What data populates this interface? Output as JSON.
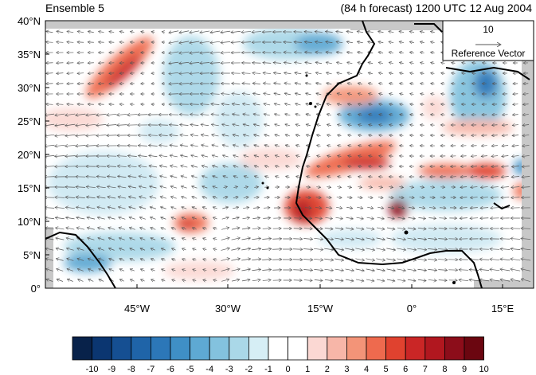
{
  "header": {
    "ensemble_label": "Ensemble 5",
    "forecast_label": "(84 h forecast) 1200 UTC 12 Aug 2004"
  },
  "map": {
    "lat_ticks": [
      "40°N",
      "35°N",
      "30°N",
      "25°N",
      "20°N",
      "15°N",
      "10°N",
      "5°N",
      "0°"
    ],
    "lon_ticks": [
      "45°W",
      "30°W",
      "15°W",
      "0°",
      "15°E"
    ],
    "reference_vector": {
      "magnitude": "10",
      "label": "Reference Vector"
    },
    "colors": {
      "land_outside": "#c8c8c8",
      "coastline": "#000000",
      "vector": "#555555"
    }
  },
  "colorbar": {
    "labels": [
      "-10",
      "-9",
      "-8",
      "-7",
      "-6",
      "-5",
      "-4",
      "-3",
      "-2",
      "-1",
      "0",
      "1",
      "2",
      "3",
      "4",
      "5",
      "6",
      "7",
      "8",
      "9",
      "10"
    ],
    "colors": [
      "#08224a",
      "#0b3671",
      "#154f92",
      "#1f64a8",
      "#2c77b8",
      "#3f8fc6",
      "#5ea9d3",
      "#83c2de",
      "#aad8e8",
      "#d6eef5",
      "#ffffff",
      "#ffffff",
      "#fbd8d3",
      "#f7b6a8",
      "#f39478",
      "#ee6a4e",
      "#e0422f",
      "#ca2626",
      "#b1171f",
      "#8c0d1a",
      "#6b0610"
    ]
  }
}
